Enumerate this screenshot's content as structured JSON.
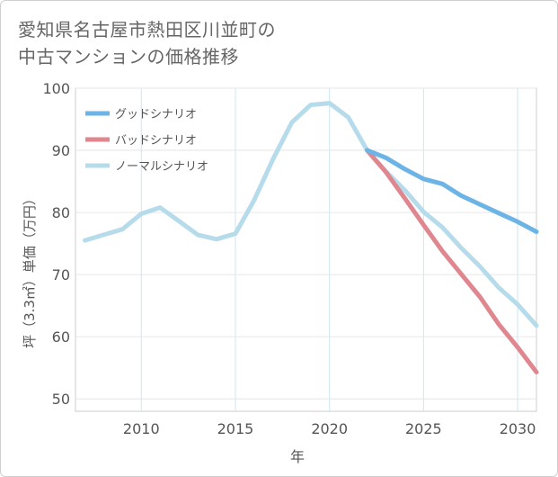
{
  "title_lines": [
    "愛知県名古屋市熱田区川並町の",
    "中古マンションの価格推移"
  ],
  "chart_data": {
    "type": "line",
    "xlabel": "年",
    "ylabel": "坪（3.3㎡）単価（万円）",
    "xlim": [
      2006.5,
      2031
    ],
    "ylim": [
      48,
      100
    ],
    "xticks": [
      2010,
      2015,
      2020,
      2025,
      2030
    ],
    "yticks": [
      50,
      60,
      70,
      80,
      90,
      100
    ],
    "grid": true,
    "legend_position": "top-left",
    "series": [
      {
        "name": "グッドシナリオ",
        "color": "#6cb4e6",
        "x": [
          2022,
          2023,
          2024,
          2025,
          2026,
          2027,
          2028,
          2029,
          2030,
          2031
        ],
        "y": [
          90.0,
          88.8,
          87.0,
          85.4,
          84.6,
          82.7,
          81.3,
          79.9,
          78.5,
          76.9
        ]
      },
      {
        "name": "バッドシナリオ",
        "color": "#e0868f",
        "x": [
          2022,
          2023,
          2024,
          2025,
          2026,
          2027,
          2028,
          2029,
          2030,
          2031
        ],
        "y": [
          90.0,
          86.5,
          82.3,
          78.0,
          73.8,
          70.1,
          66.4,
          62.0,
          58.3,
          54.3
        ]
      },
      {
        "name": "ノーマルシナリオ",
        "color": "#b6dcec",
        "x": [
          2007,
          2008,
          2009,
          2010,
          2011,
          2012,
          2013,
          2014,
          2015,
          2016,
          2017,
          2018,
          2019,
          2020,
          2021,
          2022,
          2023,
          2024,
          2025,
          2026,
          2027,
          2028,
          2029,
          2030,
          2031
        ],
        "y": [
          75.5,
          76.4,
          77.3,
          79.8,
          80.8,
          78.6,
          76.4,
          75.7,
          76.6,
          82.0,
          88.6,
          94.5,
          97.3,
          97.6,
          95.3,
          90.0,
          86.6,
          83.6,
          80.1,
          77.6,
          74.3,
          71.3,
          67.9,
          65.2,
          61.8
        ]
      }
    ]
  }
}
